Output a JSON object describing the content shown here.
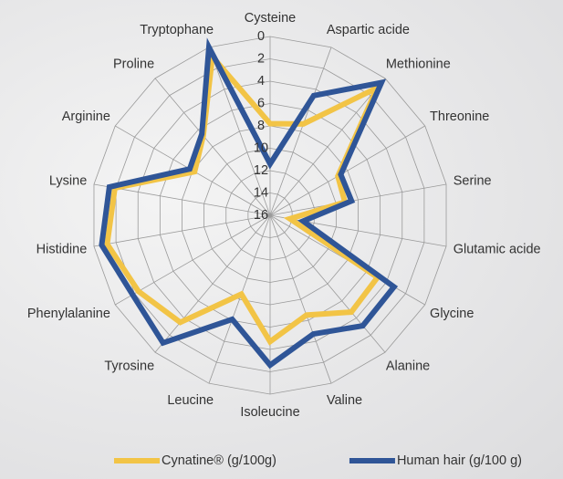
{
  "chart_data": {
    "type": "radar",
    "categories": [
      "Cysteine",
      "Aspartic acide",
      "Methionine",
      "Threonine",
      "Serine",
      "Glutamic acide",
      "Glycine",
      "Alanine",
      "Valine",
      "Isoleucine",
      "Leucine",
      "Tyrosine",
      "Phenylalanine",
      "Histidine",
      "Lysine",
      "Arginine",
      "Proline",
      "Tryptophane"
    ],
    "rlim": [
      0,
      16
    ],
    "reverse": true,
    "rticks": [
      0,
      2,
      4,
      6,
      8,
      10,
      12,
      14,
      16
    ],
    "grid": true,
    "legend": "bottom",
    "series": [
      {
        "name": "Cynatine® (g/100g)",
        "color": "#f2c446",
        "values": [
          7.8,
          7.3,
          1.1,
          9.0,
          9.2,
          14.2,
          4.9,
          4.7,
          6.5,
          4.7,
          8.5,
          3.5,
          2.4,
          1.2,
          1.9,
          8.2,
          6.7,
          0.9
        ]
      },
      {
        "name": "Human hair (g/100 g)",
        "color": "#2f5597",
        "values": [
          11.4,
          4.6,
          0.5,
          8.7,
          8.6,
          13.0,
          3.2,
          3.1,
          4.7,
          2.6,
          6.1,
          1.1,
          1.8,
          0.7,
          1.4,
          7.7,
          6.5,
          0.0
        ]
      }
    ]
  }
}
